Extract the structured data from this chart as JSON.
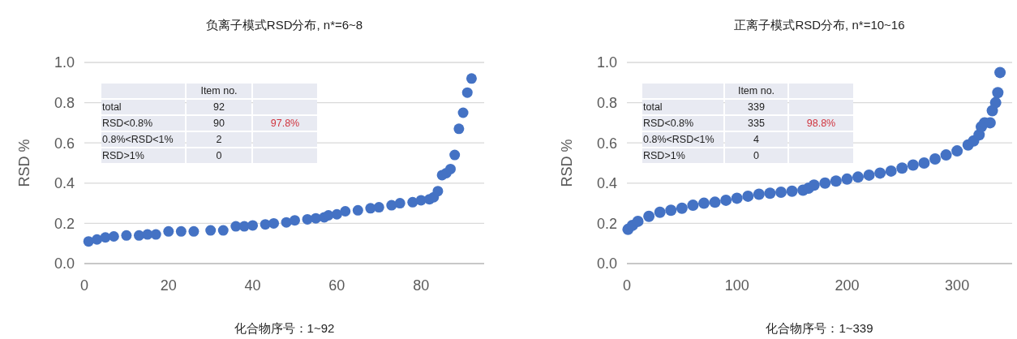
{
  "chart_data": [
    {
      "type": "scatter",
      "title": "负离子模式RSD分布, n*=6~8",
      "xlabel": "化合物序号：1~92",
      "ylabel": "RSD %",
      "xlim": [
        0,
        95
      ],
      "xticks": [
        0,
        20,
        40,
        60,
        80
      ],
      "ylim": [
        0,
        1
      ],
      "yticks": [
        {
          "value": 0,
          "label": "0.0"
        },
        {
          "value": 0.2,
          "label": "0.2"
        },
        {
          "value": 0.4,
          "label": "0.4"
        },
        {
          "value": 0.6,
          "label": "0.6"
        },
        {
          "value": 0.8,
          "label": "0.8"
        },
        {
          "value": 1,
          "label": "1.0"
        }
      ],
      "grid": "y",
      "marker": "circle",
      "annotations": [
        "Item no.",
        "total",
        "92",
        "RSD<0.8%",
        "90",
        "97.8%",
        "0.8%<RSD<1%",
        "2",
        "RSD>1%",
        "0"
      ],
      "series": [
        {
          "color": "#4472c4",
          "x": [
            1,
            3,
            5,
            7,
            10,
            13,
            15,
            17,
            20,
            23,
            26,
            30,
            33,
            36,
            38,
            40,
            43,
            45,
            48,
            50,
            53,
            55,
            57,
            58,
            60,
            62,
            65,
            68,
            70,
            73,
            75,
            78,
            80,
            82,
            83,
            84,
            85,
            86,
            87,
            88,
            89,
            90,
            91,
            92
          ],
          "values": [
            0.11,
            0.12,
            0.13,
            0.135,
            0.14,
            0.14,
            0.145,
            0.145,
            0.16,
            0.16,
            0.16,
            0.165,
            0.165,
            0.185,
            0.185,
            0.19,
            0.195,
            0.2,
            0.205,
            0.215,
            0.22,
            0.225,
            0.23,
            0.24,
            0.245,
            0.26,
            0.265,
            0.275,
            0.28,
            0.29,
            0.3,
            0.305,
            0.315,
            0.32,
            0.33,
            0.36,
            0.44,
            0.45,
            0.47,
            0.54,
            0.67,
            0.75,
            0.85,
            0.92
          ]
        }
      ]
    },
    {
      "type": "scatter",
      "title": "正离子模式RSD分布, n*=10~16",
      "xlabel": "化合物序号：1~339",
      "ylabel": "RSD %",
      "xlim": [
        0,
        350
      ],
      "xticks": [
        0,
        100,
        200,
        300
      ],
      "ylim": [
        0,
        1
      ],
      "yticks": [
        {
          "value": 0,
          "label": "0.0"
        },
        {
          "value": 0.2,
          "label": "0.2"
        },
        {
          "value": 0.4,
          "label": "0.4"
        },
        {
          "value": 0.6,
          "label": "0.6"
        },
        {
          "value": 0.8,
          "label": "0.8"
        },
        {
          "value": 1,
          "label": "1.0"
        }
      ],
      "grid": "y",
      "marker": "circle",
      "annotations": [
        "Item no.",
        "total",
        "339",
        "RSD<0.8%",
        "335",
        "98.8%",
        "0.8%<RSD<1%",
        "4",
        "RSD>1%",
        "0"
      ],
      "series": [
        {
          "color": "#4472c4",
          "x": [
            1,
            5,
            10,
            20,
            30,
            40,
            50,
            60,
            70,
            80,
            90,
            100,
            110,
            120,
            130,
            140,
            150,
            160,
            165,
            170,
            180,
            190,
            200,
            210,
            220,
            230,
            240,
            250,
            260,
            270,
            280,
            290,
            300,
            310,
            315,
            320,
            322,
            325,
            330,
            332,
            335,
            337,
            339
          ],
          "values": [
            0.17,
            0.19,
            0.21,
            0.235,
            0.255,
            0.265,
            0.275,
            0.29,
            0.3,
            0.305,
            0.315,
            0.325,
            0.335,
            0.345,
            0.35,
            0.355,
            0.36,
            0.365,
            0.375,
            0.39,
            0.4,
            0.41,
            0.42,
            0.43,
            0.44,
            0.45,
            0.46,
            0.475,
            0.49,
            0.5,
            0.52,
            0.54,
            0.56,
            0.59,
            0.61,
            0.64,
            0.68,
            0.7,
            0.7,
            0.76,
            0.8,
            0.85,
            0.95
          ]
        }
      ]
    }
  ]
}
